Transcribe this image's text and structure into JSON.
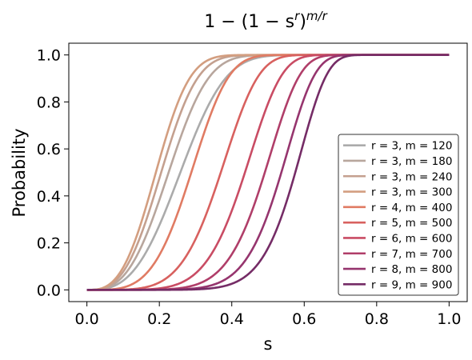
{
  "chart_data": {
    "type": "line",
    "title": "1 − (1 − sʳ)ᵐ/ʳ",
    "title_parts": {
      "base": "1 − (1 − s",
      "exp_r": "r",
      "mid": ")",
      "exp_mr": "m/r"
    },
    "xlabel": "s",
    "ylabel": "Probability",
    "xlim": [
      -0.05,
      1.05
    ],
    "ylim": [
      -0.05,
      1.05
    ],
    "xticks": [
      0.0,
      0.2,
      0.4,
      0.6,
      0.8,
      1.0
    ],
    "xtick_labels": [
      "0.0",
      "0.2",
      "0.4",
      "0.6",
      "0.8",
      "1.0"
    ],
    "yticks": [
      0.0,
      0.2,
      0.4,
      0.6,
      0.8,
      1.0
    ],
    "ytick_labels": [
      "0.0",
      "0.2",
      "0.4",
      "0.6",
      "0.8",
      "1.0"
    ],
    "grid": false,
    "legend_position": "lower-right",
    "formula": "1 - (1 - s^r)^(m/r)",
    "series": [
      {
        "name": "r = 3, m = 120",
        "r": 3,
        "m": 120,
        "color": "#ababab"
      },
      {
        "name": "r = 3, m = 180",
        "r": 3,
        "m": 180,
        "color": "#b8a69d"
      },
      {
        "name": "r = 3, m = 240",
        "r": 3,
        "m": 240,
        "color": "#c4a08f"
      },
      {
        "name": "r = 3, m = 300",
        "r": 3,
        "m": 300,
        "color": "#d39e80"
      },
      {
        "name": "r = 4, m = 400",
        "r": 4,
        "m": 400,
        "color": "#e07b63"
      },
      {
        "name": "r = 5, m = 500",
        "r": 5,
        "m": 500,
        "color": "#d8615f"
      },
      {
        "name": "r = 6, m = 600",
        "r": 6,
        "m": 600,
        "color": "#c94c64"
      },
      {
        "name": "r = 7, m = 700",
        "r": 7,
        "m": 700,
        "color": "#b03e69"
      },
      {
        "name": "r = 8, m = 800",
        "r": 8,
        "m": 800,
        "color": "#96356e"
      },
      {
        "name": "r = 9, m = 900",
        "r": 9,
        "m": 900,
        "color": "#752c66"
      }
    ]
  }
}
